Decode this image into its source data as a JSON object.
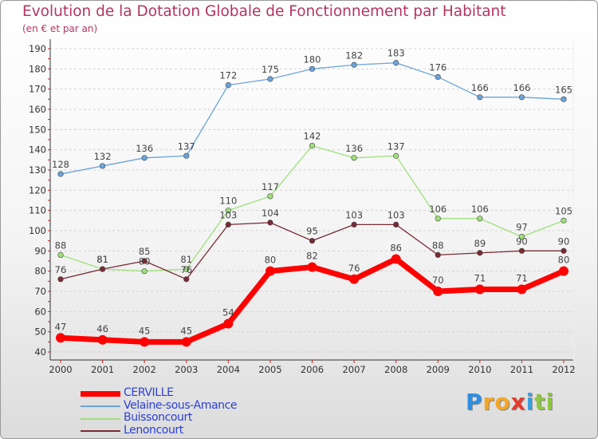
{
  "header": {
    "title": "Evolution de la Dotation Globale de Fonctionnement par Habitant",
    "subtitle": "(en € et par an)"
  },
  "logo": {
    "text": "Proxiti",
    "letters": [
      {
        "ch": "P",
        "color": "#2f8fe0"
      },
      {
        "ch": "r",
        "color": "#f5a623"
      },
      {
        "ch": "o",
        "color": "#f5a623"
      },
      {
        "ch": "x",
        "color": "#e63c2e"
      },
      {
        "ch": "i",
        "color": "#3aa0e0"
      },
      {
        "ch": "t",
        "color": "#8dc63f"
      },
      {
        "ch": "i",
        "color": "#8dc63f"
      }
    ]
  },
  "chart_data": {
    "type": "line",
    "title": "Evolution de la Dotation Globale de Fonctionnement par Habitant",
    "subtitle": "(en € et par an)",
    "xlabel": "",
    "ylabel": "",
    "x": [
      "2000",
      "2001",
      "2002",
      "2003",
      "2004",
      "2005",
      "2006",
      "2007",
      "2008",
      "2009",
      "2010",
      "2011",
      "2012"
    ],
    "ylim": [
      40,
      190
    ],
    "yticks": [
      40,
      50,
      60,
      70,
      80,
      90,
      100,
      110,
      120,
      130,
      140,
      150,
      160,
      170,
      180,
      190
    ],
    "grid": "horizontal dashed",
    "legend_position": "bottom-left",
    "series": [
      {
        "name": "CERVILLE",
        "color": "#ff0000",
        "emphasis": true,
        "values": [
          47,
          46,
          45,
          45,
          54,
          80,
          82,
          76,
          86,
          70,
          71,
          71,
          80
        ]
      },
      {
        "name": "Velaine-sous-Amance",
        "color": "#6aa4dc",
        "values": [
          128,
          132,
          136,
          137,
          172,
          175,
          180,
          182,
          183,
          176,
          166,
          166,
          165
        ]
      },
      {
        "name": "Buissoncourt",
        "color": "#9fe07a",
        "values": [
          88,
          81,
          80,
          81,
          110,
          117,
          142,
          136,
          137,
          106,
          106,
          97,
          105
        ]
      },
      {
        "name": "Lenoncourt",
        "color": "#7a2a34",
        "values": [
          76,
          81,
          85,
          76,
          103,
          104,
          95,
          103,
          103,
          88,
          89,
          90,
          90
        ]
      }
    ],
    "label_order": [
      "Velaine-sous-Amance",
      "Buissoncourt",
      "Lenoncourt",
      "CERVILLE"
    ]
  }
}
